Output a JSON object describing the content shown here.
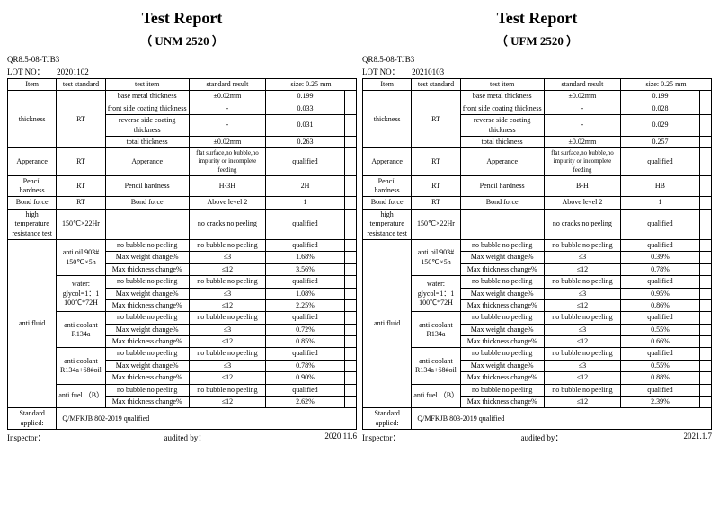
{
  "reports": [
    {
      "title": "Test Report",
      "subtitle": "（ UNM 2520 ）",
      "doc_code": "QR8.5-08-TJB3",
      "lot_label": "LOT NO：",
      "lot_no": "20201102",
      "size_label": "size: 0.25 mm",
      "headers": {
        "item": "Item",
        "test_std": "test standard",
        "test_item": "test item",
        "std_res": "standard result"
      },
      "thickness": {
        "item": "thickness",
        "std": "RT",
        "rows": [
          {
            "ti": "base metal thickness",
            "sr": "±0.02mm",
            "v": "0.199"
          },
          {
            "ti": "front side coating thickness",
            "sr": "-",
            "v": "0.033"
          },
          {
            "ti": "reverse side coating thickness",
            "sr": "-",
            "v": "0.031"
          },
          {
            "ti": "total thickness",
            "sr": "±0.02mm",
            "v": "0.263"
          }
        ]
      },
      "appearance": {
        "item": "Apperance",
        "std": "RT",
        "ti": "Apperance",
        "sr": "flat surface,no bubble,no impurity or incomplete feeding",
        "v": "qualified"
      },
      "pencil": {
        "item": "Pencil hardness",
        "std": "RT",
        "ti": "Pencil hardness",
        "sr": "H-3H",
        "v": "2H"
      },
      "bond": {
        "item": "Bond force",
        "std": "RT",
        "ti": "Bond force",
        "sr": "Above level 2",
        "v": "1"
      },
      "hightemp": {
        "item": "high temperature resistance test",
        "std": "150℃×22Hr",
        "ti": "",
        "sr": "no cracks  no peeling",
        "v": "qualified"
      },
      "antifluid": {
        "item": "anti fluid",
        "groups": [
          {
            "std": "anti oil 903# 150℃×5h",
            "rows": [
              {
                "ti": "no bubble  no peeling",
                "sr": "no bubble  no peeling",
                "v": "qualified"
              },
              {
                "ti": "Max weight change%",
                "sr": "≤3",
                "v": "1.68%"
              },
              {
                "ti": "Max thickness change%",
                "sr": "≤12",
                "v": "3.56%"
              }
            ]
          },
          {
            "std": "water: glycol=1：1 100℃*72H",
            "rows": [
              {
                "ti": "no bubble  no peeling",
                "sr": "no bubble  no peeling",
                "v": "qualified"
              },
              {
                "ti": "Max weight change%",
                "sr": "≤3",
                "v": "1.08%"
              },
              {
                "ti": "Max thickness change%",
                "sr": "≤12",
                "v": "2.25%"
              }
            ]
          },
          {
            "std": "anti coolant R134a",
            "rows": [
              {
                "ti": "no bubble  no peeling",
                "sr": "no bubble  no peeling",
                "v": "qualified"
              },
              {
                "ti": "Max weight change%",
                "sr": "≤3",
                "v": "0.72%"
              },
              {
                "ti": "Max thickness change%",
                "sr": "≤12",
                "v": "0.85%"
              }
            ]
          },
          {
            "std": "anti coolant R134a+68#oil",
            "rows": [
              {
                "ti": "no bubble  no peeling",
                "sr": "no bubble  no peeling",
                "v": "qualified"
              },
              {
                "ti": "Max weight change%",
                "sr": "≤3",
                "v": "0.78%"
              },
              {
                "ti": "Max thickness change%",
                "sr": "≤12",
                "v": "0.90%"
              }
            ]
          },
          {
            "std": "anti fuel （B）",
            "rows": [
              {
                "ti": "no bubble  no peeling",
                "sr": "no bubble  no peeling",
                "v": "qualified"
              },
              {
                "ti": "Max thickness change%",
                "sr": "≤12",
                "v": "2.62%"
              }
            ]
          }
        ]
      },
      "standard_applied": {
        "label": "Standard applied:",
        "val": "Q/MFKJB 802-2019  qualified"
      },
      "footer": {
        "inspector": "Inspector：",
        "auditor": "audited by：",
        "date": "2020.11.6"
      }
    },
    {
      "title": "Test Report",
      "subtitle": "（ UFM 2520 ）",
      "doc_code": "QR8.5-08-TJB3",
      "lot_label": "LOT NO：",
      "lot_no": "20210103",
      "size_label": "size: 0.25 mm",
      "headers": {
        "item": "Item",
        "test_std": "test standard",
        "test_item": "test item",
        "std_res": "standard result"
      },
      "thickness": {
        "item": "thickness",
        "std": "RT",
        "rows": [
          {
            "ti": "base metal thickness",
            "sr": "±0.02mm",
            "v": "0.199"
          },
          {
            "ti": "front side coating thickness",
            "sr": "-",
            "v": "0.028"
          },
          {
            "ti": "reverse side coating thickness",
            "sr": "-",
            "v": "0.029"
          },
          {
            "ti": "total thickness",
            "sr": "±0.02mm",
            "v": "0.257"
          }
        ]
      },
      "appearance": {
        "item": "Apperance",
        "std": "RT",
        "ti": "Apperance",
        "sr": "flat surface,no bubble,no impurity or incomplete feeding",
        "v": "qualified"
      },
      "pencil": {
        "item": "Pencil hardness",
        "std": "RT",
        "ti": "Pencil hardness",
        "sr": "B-H",
        "v": "HB"
      },
      "bond": {
        "item": "Bond force",
        "std": "RT",
        "ti": "Bond force",
        "sr": "Above level 2",
        "v": "1"
      },
      "hightemp": {
        "item": "high temperature resistance test",
        "std": "150℃×22Hr",
        "ti": "",
        "sr": "no cracks  no peeling",
        "v": "qualified"
      },
      "antifluid": {
        "item": "anti fluid",
        "groups": [
          {
            "std": "anti oil 903# 150℃×5h",
            "rows": [
              {
                "ti": "no bubble  no peeling",
                "sr": "no bubble  no peeling",
                "v": "qualified"
              },
              {
                "ti": "Max weight change%",
                "sr": "≤3",
                "v": "0.39%"
              },
              {
                "ti": "Max thickness change%",
                "sr": "≤12",
                "v": "0.78%"
              }
            ]
          },
          {
            "std": "water: glycol=1：1 100℃*72H",
            "rows": [
              {
                "ti": "no bubble  no peeling",
                "sr": "no bubble  no peeling",
                "v": "qualified"
              },
              {
                "ti": "Max weight change%",
                "sr": "≤3",
                "v": "0.95%"
              },
              {
                "ti": "Max thickness change%",
                "sr": "≤12",
                "v": "0.86%"
              }
            ]
          },
          {
            "std": "anti coolant R134a",
            "rows": [
              {
                "ti": "no bubble  no peeling",
                "sr": "no bubble  no peeling",
                "v": "qualified"
              },
              {
                "ti": "Max weight change%",
                "sr": "≤3",
                "v": "0.55%"
              },
              {
                "ti": "Max thickness change%",
                "sr": "≤12",
                "v": "0.66%"
              }
            ]
          },
          {
            "std": "anti coolant R134a+68#oil",
            "rows": [
              {
                "ti": "no bubble  no peeling",
                "sr": "no bubble  no peeling",
                "v": "qualified"
              },
              {
                "ti": "Max weight change%",
                "sr": "≤3",
                "v": "0.55%"
              },
              {
                "ti": "Max thickness change%",
                "sr": "≤12",
                "v": "0.88%"
              }
            ]
          },
          {
            "std": "anti fuel （B）",
            "rows": [
              {
                "ti": "no bubble  no peeling",
                "sr": "no bubble  no peeling",
                "v": "qualified"
              },
              {
                "ti": "Max thickness change%",
                "sr": "≤12",
                "v": "2.39%"
              }
            ]
          }
        ]
      },
      "standard_applied": {
        "label": "Standard applied:",
        "val": "Q/MFKJB 803-2019  qualified"
      },
      "footer": {
        "inspector": "Inspector：",
        "auditor": "audited by：",
        "date": "2021.1.7"
      }
    }
  ]
}
